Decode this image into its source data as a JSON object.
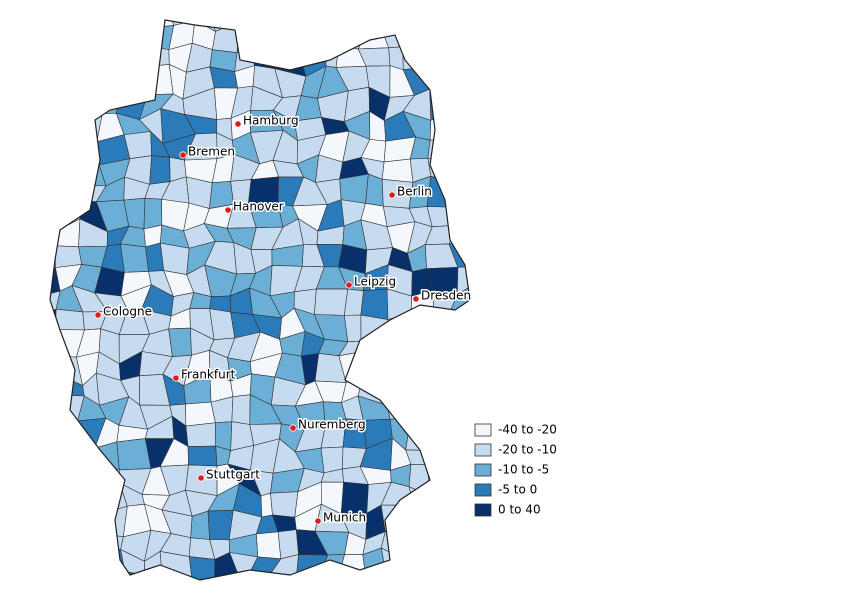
{
  "cities": [
    {
      "label": "Hamburg"
    },
    {
      "label": "Bremen"
    },
    {
      "label": "Hanover"
    },
    {
      "label": "Berlin"
    },
    {
      "label": "Leipzig"
    },
    {
      "label": "Dresden"
    },
    {
      "label": "Cologne"
    },
    {
      "label": "Frankfurt"
    },
    {
      "label": "Nuremberg"
    },
    {
      "label": "Stuttgart"
    },
    {
      "label": "Munich"
    }
  ],
  "legend": {
    "items": [
      {
        "label": "-40 to -20",
        "color": "#f4f8fd"
      },
      {
        "label": "-20 to -10",
        "color": "#c6dbef"
      },
      {
        "label": "-10 to -5",
        "color": "#6baed6"
      },
      {
        "label": "-5 to 0",
        "color": "#2b7bba"
      },
      {
        "label": "0 to 40",
        "color": "#08306b"
      }
    ]
  }
}
